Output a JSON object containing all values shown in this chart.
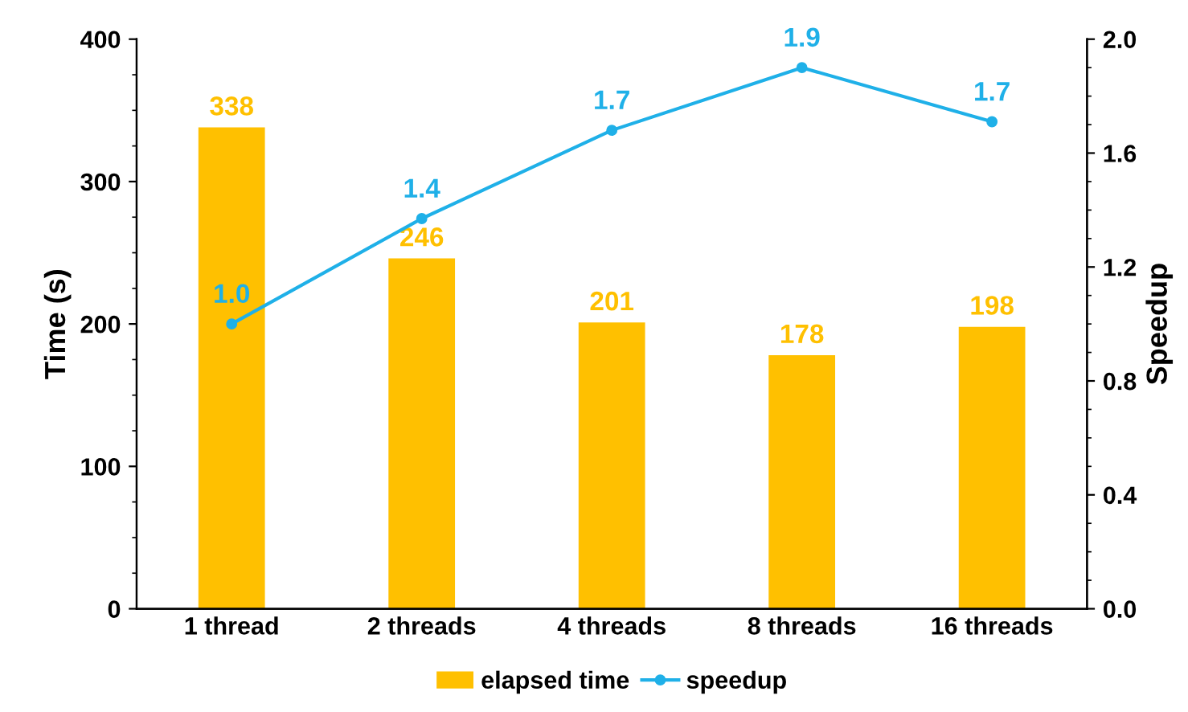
{
  "chart_data": {
    "type": "bar",
    "categories": [
      "1 thread",
      "2 threads",
      "4 threads",
      "8 threads",
      "16 threads"
    ],
    "ylabel": "Time (s)",
    "y2label": "Speedup",
    "series": [
      {
        "name": "elapsed time",
        "color": "#ffc000",
        "values": [
          338,
          246,
          201,
          178,
          198
        ],
        "data_labels": true
      },
      {
        "name": "speedup",
        "type": "line",
        "axis": "y2",
        "color": "#1fb0e8",
        "values": [
          1.0,
          1.37,
          1.68,
          1.9,
          1.71
        ],
        "value_labels": [
          "1.0",
          "1.4",
          "1.7",
          "1.9",
          "1.7"
        ],
        "marker": "circle",
        "line_style": "solid"
      }
    ],
    "ylim": [
      0,
      400
    ],
    "yticks": [
      0,
      100,
      200,
      300,
      400
    ],
    "y2lim": [
      0,
      2.0
    ],
    "y2ticks": [
      {
        "value": 0,
        "label": "0.0"
      },
      {
        "value": 0.4,
        "label": "0.4"
      },
      {
        "value": 0.8,
        "label": "0.8"
      },
      {
        "value": 1.2,
        "label": "1.2"
      },
      {
        "value": 1.6,
        "label": "1.6"
      },
      {
        "value": 2.0,
        "label": "2.0"
      }
    ],
    "grid": false,
    "legend": "bottom"
  }
}
